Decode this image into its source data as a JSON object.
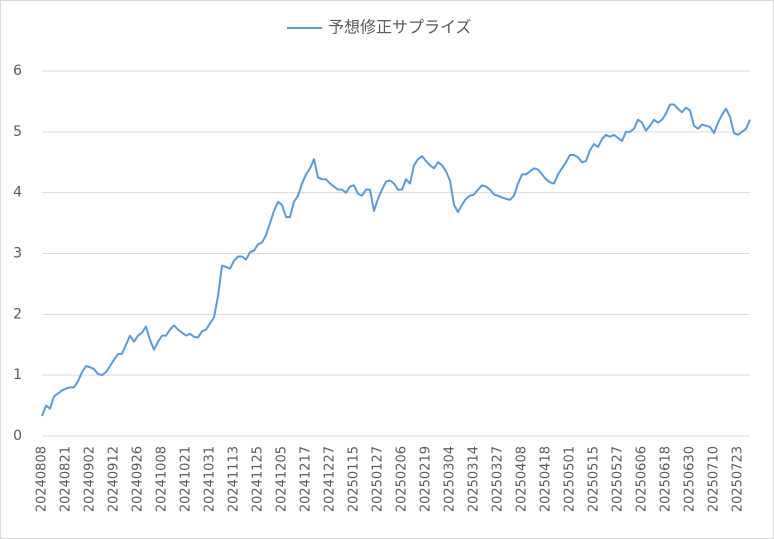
{
  "chart_data": {
    "type": "line",
    "categories": [
      "20240808",
      null,
      null,
      null,
      null,
      null,
      "20240821",
      null,
      null,
      null,
      null,
      null,
      "20240902",
      null,
      null,
      null,
      null,
      null,
      "20240912",
      null,
      null,
      null,
      null,
      null,
      "20240926",
      null,
      null,
      null,
      null,
      null,
      "20241008",
      null,
      null,
      null,
      null,
      null,
      "20241021",
      null,
      null,
      null,
      null,
      null,
      "20241031",
      null,
      null,
      null,
      null,
      null,
      "20241113",
      null,
      null,
      null,
      null,
      null,
      "20241125",
      null,
      null,
      null,
      null,
      null,
      "20241205",
      null,
      null,
      null,
      null,
      null,
      "20241217",
      null,
      null,
      null,
      null,
      null,
      "20241227",
      null,
      null,
      null,
      null,
      null,
      "20250115",
      null,
      null,
      null,
      null,
      null,
      "20250127",
      null,
      null,
      null,
      null,
      null,
      "20250206",
      null,
      null,
      null,
      null,
      null,
      "20250219",
      null,
      null,
      null,
      null,
      null,
      "20250304",
      null,
      null,
      null,
      null,
      null,
      "20250314",
      null,
      null,
      null,
      null,
      null,
      "20250327",
      null,
      null,
      null,
      null,
      null,
      "20250408",
      null,
      null,
      null,
      null,
      null,
      "20250418",
      null,
      null,
      null,
      null,
      null,
      "20250501",
      null,
      null,
      null,
      null,
      null,
      "20250515",
      null,
      null,
      null,
      null,
      null,
      "20250527",
      null,
      null,
      null,
      null,
      null,
      "20250606",
      null,
      null,
      null,
      null,
      null,
      "20250618",
      null,
      null,
      null,
      null,
      null,
      "20250630",
      null,
      null,
      null,
      null,
      null,
      "20250710",
      null,
      null,
      null,
      null,
      null,
      "20250723",
      null,
      null,
      null
    ],
    "series": [
      {
        "name": "予想修正サプライズ",
        "color": "#5b9bd5",
        "values": [
          0.33,
          0.5,
          0.45,
          0.65,
          0.7,
          0.75,
          0.78,
          0.8,
          0.8,
          0.9,
          1.05,
          1.15,
          1.13,
          1.1,
          1.02,
          1.0,
          1.05,
          1.15,
          1.25,
          1.35,
          1.35,
          1.5,
          1.65,
          1.55,
          1.65,
          1.7,
          1.8,
          1.58,
          1.42,
          1.55,
          1.65,
          1.65,
          1.75,
          1.82,
          1.75,
          1.7,
          1.65,
          1.68,
          1.63,
          1.62,
          1.72,
          1.75,
          1.85,
          1.95,
          2.3,
          2.8,
          2.78,
          2.75,
          2.88,
          2.95,
          2.95,
          2.9,
          3.02,
          3.05,
          3.15,
          3.18,
          3.3,
          3.5,
          3.7,
          3.85,
          3.8,
          3.6,
          3.6,
          3.85,
          3.95,
          4.15,
          4.3,
          4.4,
          4.55,
          4.25,
          4.22,
          4.22,
          4.15,
          4.1,
          4.05,
          4.05,
          4.0,
          4.1,
          4.12,
          3.98,
          3.95,
          4.05,
          4.05,
          3.7,
          3.9,
          4.05,
          4.18,
          4.2,
          4.15,
          4.05,
          4.05,
          4.22,
          4.15,
          4.45,
          4.55,
          4.6,
          4.52,
          4.45,
          4.4,
          4.5,
          4.45,
          4.35,
          4.2,
          3.8,
          3.68,
          3.8,
          3.9,
          3.95,
          3.97,
          4.05,
          4.12,
          4.1,
          4.05,
          3.97,
          3.95,
          3.92,
          3.9,
          3.88,
          3.95,
          4.15,
          4.3,
          4.3,
          4.35,
          4.4,
          4.38,
          4.3,
          4.22,
          4.17,
          4.15,
          4.3,
          4.4,
          4.5,
          4.62,
          4.62,
          4.58,
          4.5,
          4.52,
          4.7,
          4.8,
          4.75,
          4.88,
          4.95,
          4.92,
          4.95,
          4.9,
          4.85,
          5.0,
          5.0,
          5.05,
          5.2,
          5.15,
          5.02,
          5.1,
          5.2,
          5.15,
          5.2,
          5.3,
          5.45,
          5.45,
          5.38,
          5.32,
          5.4,
          5.35,
          5.1,
          5.05,
          5.12,
          5.1,
          5.08,
          4.98,
          5.15,
          5.28,
          5.38,
          5.25,
          4.98,
          4.95,
          5.0,
          5.05,
          5.2
        ]
      }
    ],
    "ylim": [
      0,
      6
    ],
    "yticks": [
      0,
      1,
      2,
      3,
      4,
      5,
      6
    ],
    "grid": true,
    "legend": "top"
  }
}
